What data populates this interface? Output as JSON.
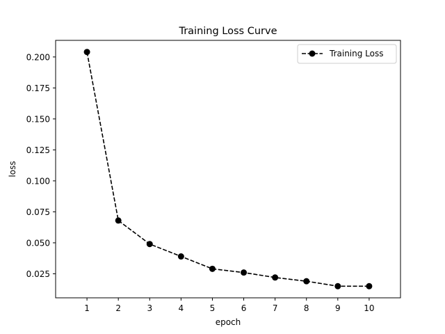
{
  "chart_data": {
    "type": "line",
    "title": "Training Loss Curve",
    "xlabel": "epoch",
    "ylabel": "loss",
    "x": [
      1,
      2,
      3,
      4,
      5,
      6,
      7,
      8,
      9,
      10
    ],
    "series": [
      {
        "name": "Training Loss",
        "values": [
          0.204,
          0.068,
          0.049,
          0.039,
          0.029,
          0.026,
          0.022,
          0.019,
          0.015,
          0.015
        ],
        "color": "#000000",
        "linestyle": "dashed",
        "marker": "circle"
      }
    ],
    "xticks": [
      1,
      2,
      3,
      4,
      5,
      6,
      7,
      8,
      9,
      10
    ],
    "yticks": [
      0.025,
      0.05,
      0.075,
      0.1,
      0.125,
      0.15,
      0.175,
      0.2
    ],
    "ytick_labels": [
      "0.025",
      "0.050",
      "0.075",
      "0.100",
      "0.125",
      "0.150",
      "0.175",
      "0.200"
    ],
    "xlim": [
      0,
      11
    ],
    "ylim": [
      0.0056,
      0.2134
    ],
    "grid": false,
    "legend": "top-right"
  }
}
